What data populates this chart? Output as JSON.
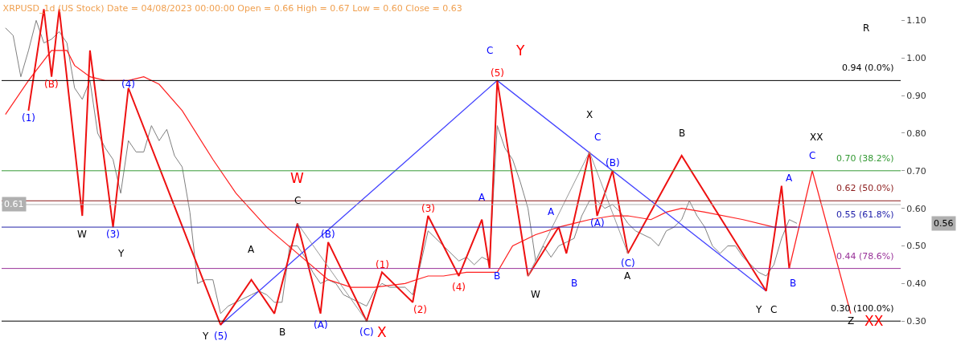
{
  "chart_data": {
    "type": "line",
    "title": "XRPUSD_1d (US Stock) Date = 04/08/2023 00:00:00 Open = 0.66 High = 0.67 Low = 0.60 Close = 0.63",
    "categories": [
      null,
      null,
      null,
      null,
      null,
      null,
      null,
      null,
      null,
      null,
      null,
      null,
      null,
      null,
      null,
      null,
      null,
      null,
      null,
      null,
      null,
      null,
      null,
      null,
      null,
      null,
      null,
      null,
      null,
      null,
      null,
      null,
      null,
      null,
      null,
      null,
      null,
      null,
      null,
      null,
      null,
      null,
      null,
      null,
      null,
      null,
      null,
      null,
      null,
      null,
      null,
      null,
      null,
      null,
      null,
      null,
      null,
      null,
      null,
      null,
      null,
      null,
      null,
      null,
      null,
      null,
      null,
      null,
      null,
      null,
      null,
      null,
      null,
      null,
      null,
      null,
      null,
      null,
      null,
      null,
      null,
      null,
      null,
      null,
      null,
      null,
      null,
      null,
      null,
      null,
      null,
      null,
      null,
      null,
      null,
      null,
      null,
      null,
      null,
      null,
      null,
      null,
      null,
      null,
      null,
      null,
      null,
      null,
      null,
      null,
      null,
      null,
      null,
      null,
      null,
      null,
      null
    ],
    "ylim": [
      0.23,
      1.15
    ],
    "yticks": [
      {
        "value": 0.3,
        "label": "0.30"
      },
      {
        "value": 0.4,
        "label": "0.40"
      },
      {
        "value": 0.5,
        "label": "0.50"
      },
      {
        "value": 0.6,
        "label": "0.60"
      },
      {
        "value": 0.7,
        "label": "0.70"
      },
      {
        "value": 0.8,
        "label": "0.80"
      },
      {
        "value": 0.9,
        "label": "0.90"
      },
      {
        "value": 1.0,
        "label": "1.00"
      },
      {
        "value": 1.1,
        "label": "1.10"
      }
    ],
    "tick_labels": "y",
    "marker": "none",
    "line_style": "solid",
    "series": [
      {
        "color": "#808080",
        "values": [
          1.08,
          1.06,
          0.95,
          1.02,
          1.1,
          1.04,
          1.05,
          1.07,
          1.04,
          0.92,
          0.89,
          0.94,
          0.8,
          0.76,
          0.73,
          0.64,
          0.78,
          0.75,
          0.75,
          0.82,
          0.78,
          0.81,
          0.74,
          0.71,
          0.59,
          0.4,
          0.41,
          0.41,
          0.32,
          0.34,
          0.35,
          0.36,
          0.37,
          0.38,
          0.37,
          0.35,
          0.35,
          0.5,
          0.5,
          0.47,
          0.43,
          0.4,
          0.41,
          0.4,
          0.37,
          0.36,
          0.35,
          0.34,
          0.38,
          0.4,
          0.39,
          0.39,
          0.39,
          0.37,
          0.45,
          0.54,
          0.52,
          0.5,
          0.48,
          0.46,
          0.47,
          0.45,
          0.47,
          0.46,
          0.82,
          0.76,
          0.73,
          0.67,
          0.6,
          0.46,
          0.5,
          0.47,
          0.5,
          0.51,
          0.52,
          0.58,
          0.62,
          0.62,
          0.6,
          0.61,
          0.59,
          0.56,
          0.54,
          0.53,
          0.52,
          0.5,
          0.54,
          0.55,
          0.57,
          0.62,
          0.58,
          0.55,
          0.5,
          0.48,
          0.5,
          0.5,
          0.47,
          0.45,
          0.43,
          0.42,
          0.45,
          0.52,
          0.57,
          0.56,
          null,
          null,
          null,
          null,
          null,
          null,
          null,
          null,
          null,
          null,
          null,
          null,
          null
        ]
      },
      {
        "color": "#ff2020",
        "values": [
          0.85,
          null,
          null,
          0.94,
          null,
          null,
          1.02,
          null,
          1.02,
          0.98,
          null,
          0.95,
          null,
          0.94,
          null,
          null,
          0.94,
          null,
          0.95,
          null,
          0.93,
          null,
          null,
          0.86,
          null,
          null,
          null,
          0.73,
          null,
          null,
          0.64,
          null,
          null,
          null,
          0.55,
          null,
          null,
          null,
          0.48,
          null,
          null,
          null,
          0.41,
          null,
          null,
          0.39,
          null,
          null,
          0.39,
          null,
          null,
          null,
          0.4,
          null,
          null,
          0.42,
          null,
          0.42,
          null,
          null,
          0.43,
          null,
          null,
          null,
          0.43,
          null,
          0.5,
          null,
          null,
          0.53,
          null,
          null,
          0.55,
          null,
          0.56,
          null,
          0.57,
          null,
          null,
          0.58,
          null,
          0.58,
          null,
          null,
          0.57,
          null,
          0.59,
          null,
          0.6,
          null,
          null,
          0.59,
          null,
          null,
          null,
          null,
          0.57,
          null,
          null,
          null,
          0.55,
          null,
          0.55,
          0.55,
          null,
          null,
          null,
          null,
          null,
          null,
          null,
          null,
          null,
          null,
          null,
          null,
          null
        ]
      },
      {
        "color": "#999999",
        "values": [
          null,
          null,
          null,
          null,
          null,
          null,
          null,
          null,
          null,
          null,
          null,
          null,
          null,
          null,
          null,
          null,
          null,
          null,
          null,
          null,
          null,
          null,
          null,
          null,
          null,
          null,
          null,
          null,
          null,
          null,
          null,
          null,
          null,
          null,
          null,
          null,
          null,
          null,
          0.56,
          null,
          null,
          null,
          null,
          null,
          null,
          null,
          null,
          0.3,
          null,
          null,
          null,
          null,
          null,
          null,
          null,
          null,
          null,
          null,
          null,
          null,
          null,
          null,
          null,
          null,
          null,
          null,
          null,
          null,
          null,
          null,
          null,
          null,
          null,
          null,
          null,
          null,
          null,
          null,
          null,
          null,
          null,
          null,
          null,
          null,
          null,
          null,
          null,
          null,
          null,
          null,
          null,
          null,
          null,
          null,
          null,
          null,
          null,
          null,
          null,
          null,
          null,
          null,
          null,
          null,
          null,
          null,
          null,
          null,
          null,
          null,
          null,
          null,
          null,
          null,
          null,
          null,
          null
        ]
      },
      {
        "color": "#999999",
        "values": [
          null,
          null,
          null,
          null,
          null,
          null,
          null,
          null,
          null,
          null,
          null,
          null,
          null,
          null,
          null,
          null,
          null,
          null,
          null,
          null,
          null,
          null,
          null,
          null,
          null,
          null,
          null,
          null,
          null,
          null,
          null,
          null,
          null,
          null,
          null,
          null,
          null,
          null,
          null,
          null,
          null,
          null,
          null,
          null,
          null,
          null,
          null,
          null,
          null,
          null,
          null,
          null,
          null,
          null,
          null,
          null,
          null,
          null,
          null,
          null,
          null,
          null,
          null,
          null,
          null,
          null,
          null,
          null,
          0.42,
          null,
          null,
          null,
          null,
          null,
          null,
          null,
          0.75,
          null,
          null,
          null,
          null,
          0.48,
          null,
          null,
          null,
          null,
          null,
          null,
          null,
          null,
          null,
          null,
          null,
          null,
          null,
          null,
          null,
          null,
          null,
          null,
          null,
          null,
          null,
          null,
          null,
          null,
          null,
          null,
          null,
          null,
          null,
          null,
          null,
          null,
          null,
          null,
          null
        ]
      },
      {
        "color": "#4444ff",
        "values": [
          null,
          null,
          null,
          null,
          null,
          null,
          null,
          null,
          null,
          null,
          null,
          null,
          null,
          null,
          null,
          null,
          null,
          null,
          null,
          null,
          null,
          null,
          null,
          null,
          null,
          null,
          null,
          null,
          0.29,
          null,
          null,
          null,
          null,
          null,
          null,
          null,
          null,
          null,
          null,
          null,
          null,
          null,
          null,
          null,
          null,
          null,
          null,
          null,
          null,
          null,
          null,
          null,
          null,
          null,
          null,
          null,
          null,
          null,
          null,
          null,
          null,
          null,
          null,
          null,
          0.94,
          null,
          null,
          null,
          null,
          null,
          null,
          null,
          null,
          null,
          null,
          null,
          null,
          null,
          null,
          null,
          null,
          null,
          null,
          null,
          null,
          null,
          null,
          null,
          null,
          null,
          null,
          null,
          null,
          null,
          null,
          null,
          null,
          null,
          null,
          0.38,
          null,
          null,
          null,
          null,
          null,
          null,
          null,
          null,
          null,
          null,
          null,
          null,
          null,
          null,
          null,
          null,
          null
        ]
      },
      {
        "color": "#ee1111",
        "values": [
          null,
          null,
          null,
          0.86,
          null,
          1.13,
          0.95,
          1.13,
          null,
          null,
          0.58,
          1.02,
          null,
          null,
          0.55,
          null,
          0.92,
          null,
          null,
          null,
          null,
          null,
          null,
          null,
          null,
          null,
          null,
          null,
          0.29,
          null,
          null,
          null,
          0.41,
          null,
          null,
          0.32,
          null,
          null,
          0.56,
          null,
          null,
          0.32,
          0.51,
          null,
          null,
          null,
          null,
          0.3,
          null,
          0.43,
          null,
          null,
          null,
          0.35,
          null,
          0.58,
          null,
          null,
          null,
          0.42,
          null,
          null,
          0.57,
          0.44,
          0.94,
          null,
          null,
          null,
          0.42,
          null,
          null,
          null,
          0.55,
          0.48,
          null,
          null,
          0.75,
          0.58,
          null,
          0.7,
          null,
          0.48,
          null,
          null,
          null,
          null,
          null,
          null,
          0.74,
          null,
          null,
          null,
          null,
          null,
          null,
          null,
          null,
          null,
          null,
          0.38,
          null,
          0.66,
          0.44,
          null,
          null,
          null,
          null,
          null,
          null,
          null,
          null,
          null,
          null,
          null,
          null,
          null,
          null
        ]
      },
      {
        "color": "#ff2020",
        "values": [
          null,
          null,
          null,
          null,
          null,
          null,
          null,
          null,
          null,
          null,
          null,
          null,
          null,
          null,
          null,
          null,
          null,
          null,
          null,
          null,
          null,
          null,
          null,
          null,
          null,
          null,
          null,
          null,
          null,
          null,
          null,
          null,
          null,
          null,
          null,
          null,
          null,
          null,
          null,
          null,
          null,
          null,
          null,
          null,
          null,
          null,
          null,
          null,
          null,
          null,
          null,
          null,
          null,
          null,
          null,
          null,
          null,
          null,
          null,
          null,
          null,
          null,
          null,
          null,
          null,
          null,
          null,
          null,
          null,
          null,
          null,
          null,
          null,
          null,
          null,
          null,
          null,
          null,
          null,
          null,
          null,
          null,
          null,
          null,
          null,
          null,
          null,
          null,
          null,
          null,
          null,
          null,
          null,
          null,
          null,
          null,
          null,
          null,
          null,
          null,
          null,
          null,
          0.44,
          null,
          null,
          0.7,
          null,
          null,
          null,
          null,
          0.32,
          null,
          null,
          null,
          null,
          null,
          null
        ]
      }
    ],
    "ref_lines": [
      {
        "axis": "y",
        "value": 0.94,
        "label": "0.94 (0.0%)",
        "color": "#000000"
      },
      {
        "axis": "y",
        "value": 0.7,
        "label": "0.70 (38.2%)",
        "color": "#339933"
      },
      {
        "axis": "y",
        "value": 0.62,
        "label": "0.62 (50.0%)",
        "color": "#8b1a1a"
      },
      {
        "axis": "y",
        "value": 0.55,
        "label": "0.55 (61.8%)",
        "color": "#2222aa"
      },
      {
        "axis": "y",
        "value": 0.44,
        "label": "0.44 (78.6%)",
        "color": "#993399"
      },
      {
        "axis": "y",
        "value": 0.3,
        "label": "0.30 (100.0%)",
        "color": "#000000"
      },
      {
        "axis": "y",
        "value": 0.61,
        "label": "0.61",
        "color": "#b0b0b0"
      }
    ],
    "annotations": [
      "0.56",
      "(1)",
      "(B)",
      "(4)",
      "W",
      "(3)",
      "Y",
      "W",
      "C",
      "A",
      "(B)",
      "Y",
      "(5)",
      "B",
      "(A)",
      "(C)",
      "X",
      "(1)",
      "(2)",
      "(3)",
      "(4)",
      "A",
      "B",
      "C",
      "Y",
      "(5)",
      "W",
      "A",
      "B",
      "X",
      "C",
      "(B)",
      "(A)",
      "(C)",
      "A",
      "B",
      "Y",
      "C",
      "A",
      "B",
      "C",
      "XX",
      "Z",
      "XX",
      "R"
    ]
  }
}
